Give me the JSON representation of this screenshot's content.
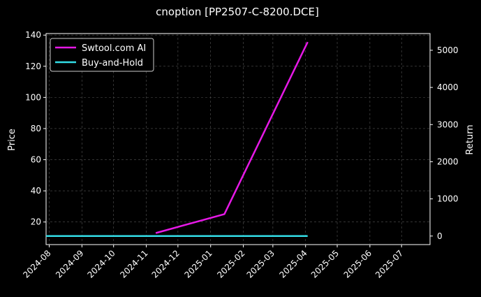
{
  "chart_data": {
    "type": "line",
    "title": "cnoption [PP2507-C-8200.DCE]",
    "xlabel": "",
    "ylabel_left": "Price",
    "ylabel_right": "Return",
    "x_ticks": [
      "2024-08",
      "2024-09",
      "2024-10",
      "2024-11",
      "2024-12",
      "2025-01",
      "2025-02",
      "2025-03",
      "2025-04",
      "2025-05",
      "2025-06",
      "2025-07"
    ],
    "xlim": [
      "2024-07-29",
      "2025-07-28"
    ],
    "ylim_left": [
      5.5,
      141
    ],
    "ylim_right": [
      -230,
      5450
    ],
    "yticks_left": [
      20,
      40,
      60,
      80,
      100,
      120,
      140
    ],
    "yticks_right": [
      0,
      1000,
      2000,
      3000,
      4000,
      5000
    ],
    "grid": true,
    "legend_position": "top-left",
    "colors": {
      "background": "#000000",
      "text": "#ffffff",
      "grid": "#555555",
      "ai": "#e619e6",
      "bh": "#33dde6"
    },
    "series": [
      {
        "name": "Swtool.com AI",
        "axis": "right",
        "color": "#e619e6",
        "x": [
          "2024-11-10",
          "2025-01-14",
          "2025-04-03"
        ],
        "values": [
          80,
          590,
          5220
        ]
      },
      {
        "name": "Buy-and-Hold",
        "axis": "right",
        "color": "#33dde6",
        "x": [
          "2024-07-29",
          "2025-04-03"
        ],
        "values": [
          0,
          0
        ]
      }
    ]
  }
}
